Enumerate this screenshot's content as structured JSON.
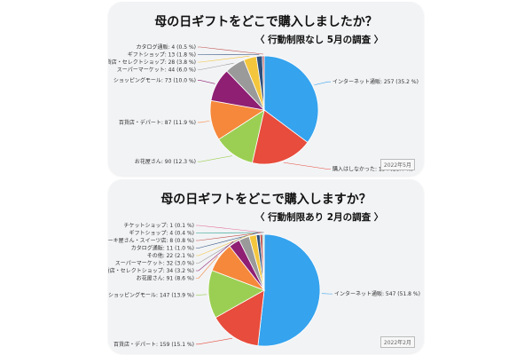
{
  "chart_data": [
    {
      "type": "pie",
      "title": "母の日ギフトをどこで購入しましたか？",
      "subtitle": "〈 行動制限なし 5月の調査 〉",
      "tag": "2022年5月",
      "slices": [
        {
          "label": "インターネット通販: 257 (35.2 %)",
          "value": 257,
          "color": "#35a3ee"
        },
        {
          "label": "購入はしなかった: 134 (18.4 %)",
          "value": 134,
          "color": "#e74c3c"
        },
        {
          "label": "お花屋さん: 90 (12.3 %)",
          "value": 90,
          "color": "#9bcf53"
        },
        {
          "label": "百貨店・デパート: 87 (11.9 %)",
          "value": 87,
          "color": "#f5883b"
        },
        {
          "label": "ショッピングモール: 73 (10.0 %)",
          "value": 73,
          "color": "#8e1f73"
        },
        {
          "label": "スーパーマーケット: 44 (6.0 %)",
          "value": 44,
          "color": "#9a9a9a"
        },
        {
          "label": "雑貨店・セレクトショップ: 28 (3.8 %)",
          "value": 28,
          "color": "#f4c63d"
        },
        {
          "label": "ギフトショップ: 13 (1.8 %)",
          "value": 13,
          "color": "#2d4f7c"
        },
        {
          "label": "カタログ通販: 4 (0.5 %)",
          "value": 4,
          "color": "#c0504d"
        }
      ]
    },
    {
      "type": "pie",
      "title": "母の日ギフトをどこで購入しますか？",
      "subtitle": "〈 行動制限あり 2月の調査 〉",
      "tag": "2022年2月",
      "slices": [
        {
          "label": "インターネット通販: 547 (51.8 %)",
          "value": 547,
          "color": "#35a3ee"
        },
        {
          "label": "百貨店・デパート: 159 (15.1 %)",
          "value": 159,
          "color": "#e74c3c"
        },
        {
          "label": "ショッピングモール: 147 (13.9 %)",
          "value": 147,
          "color": "#9bcf53"
        },
        {
          "label": "お花屋さん: 91 (8.6 %)",
          "value": 91,
          "color": "#f5883b"
        },
        {
          "label": "雑貨店・セレクトショップ: 34 (3.2 %)",
          "value": 34,
          "color": "#8e1f73"
        },
        {
          "label": "スーパーマーケット: 32 (3.0 %)",
          "value": 32,
          "color": "#9a9a9a"
        },
        {
          "label": "その他: 22 (2.1 %)",
          "value": 22,
          "color": "#f4c63d"
        },
        {
          "label": "カタログ通販: 11 (1.0 %)",
          "value": 11,
          "color": "#2d4f7c"
        },
        {
          "label": "ケーキ屋さん・スイーツ店: 8 (0.8 %)",
          "value": 8,
          "color": "#c0504d"
        },
        {
          "label": "ギフトショップ: 4 (0.4 %)",
          "value": 4,
          "color": "#1f9e89"
        },
        {
          "label": "チケットショップ: 1 (0.1 %)",
          "value": 1,
          "color": "#e36c9a"
        }
      ]
    }
  ]
}
